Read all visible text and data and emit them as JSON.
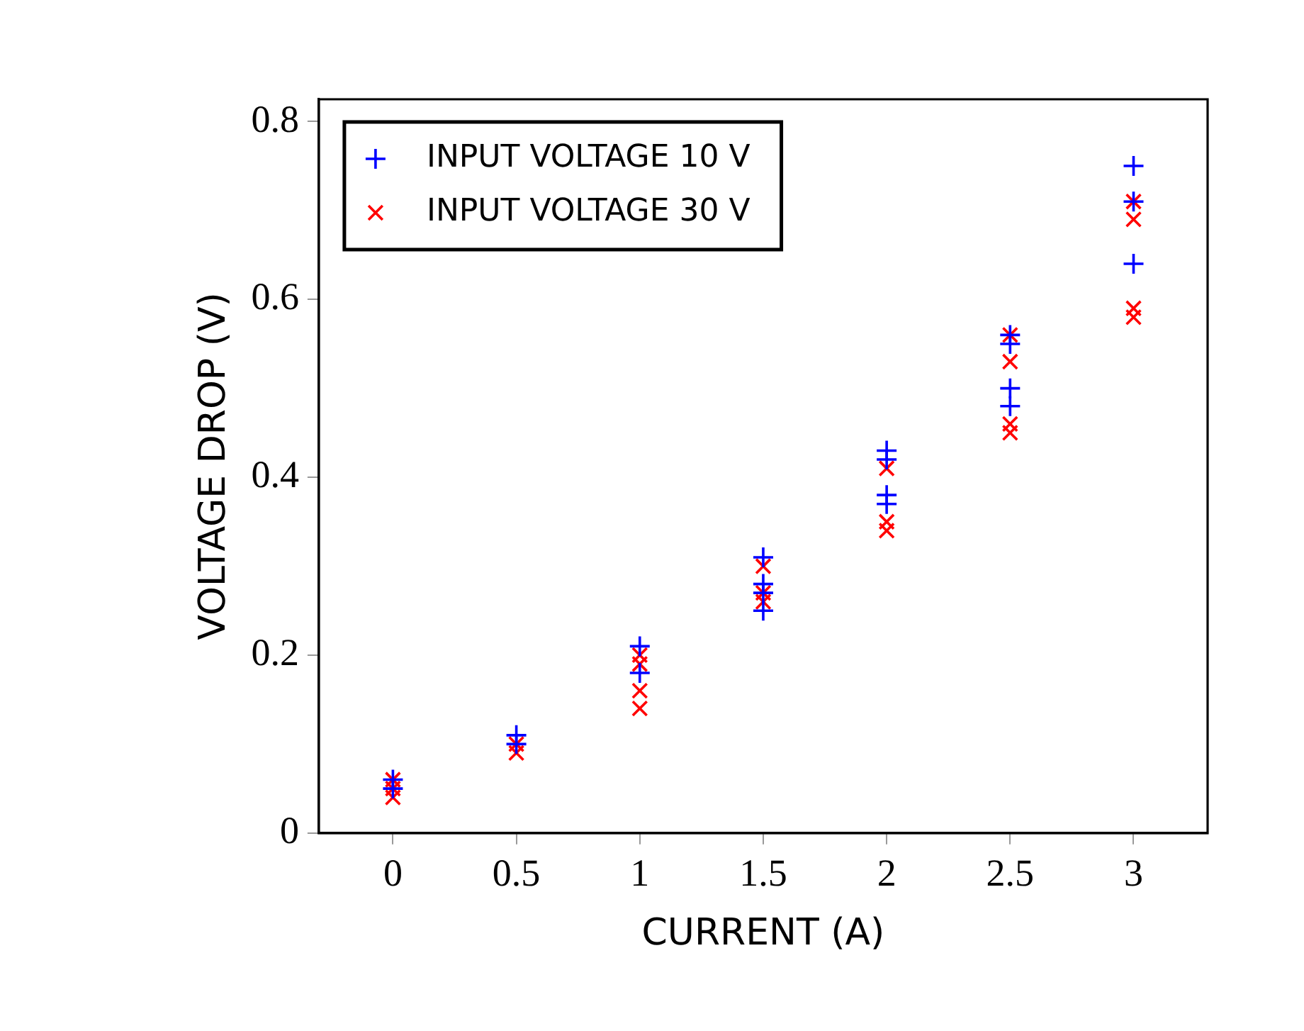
{
  "chart_data": {
    "type": "scatter",
    "xlabel": "CURRENT (A)",
    "ylabel": "VOLTAGE DROP (V)",
    "xlim": [
      -0.3,
      3.3
    ],
    "xticks": [
      0,
      0.5,
      1,
      1.5,
      2,
      2.5,
      3
    ],
    "ylim": [
      0,
      0.825
    ],
    "yticks": [
      0,
      0.2,
      0.4,
      0.6,
      0.8
    ],
    "grid": false,
    "legend": "top left",
    "series": [
      {
        "name": "INPUT VOLTAGE 10 V",
        "color": "#0000ff",
        "marker": "cross",
        "x": [
          0,
          0,
          0.5,
          0.5,
          1,
          1,
          1.5,
          1.5,
          1.5,
          1.5,
          2,
          2,
          2,
          2,
          2.5,
          2.5,
          2.5,
          2.5,
          3,
          3,
          3
        ],
        "values": [
          0.06,
          0.05,
          0.11,
          0.1,
          0.21,
          0.18,
          0.31,
          0.28,
          0.27,
          0.25,
          0.43,
          0.42,
          0.38,
          0.37,
          0.56,
          0.55,
          0.5,
          0.48,
          0.75,
          0.71,
          0.64
        ]
      },
      {
        "name": "INPUT VOLTAGE 30 V",
        "color": "#ff0000",
        "marker": "x",
        "x": [
          0,
          0,
          0,
          0.5,
          0.5,
          1,
          1,
          1,
          1,
          1.5,
          1.5,
          1.5,
          2,
          2,
          2,
          2.5,
          2.5,
          2.5,
          2.5,
          3,
          3,
          3,
          3
        ],
        "values": [
          0.06,
          0.05,
          0.04,
          0.1,
          0.09,
          0.2,
          0.19,
          0.16,
          0.14,
          0.3,
          0.27,
          0.26,
          0.41,
          0.35,
          0.34,
          0.56,
          0.53,
          0.46,
          0.45,
          0.71,
          0.69,
          0.59,
          0.58
        ]
      }
    ]
  }
}
